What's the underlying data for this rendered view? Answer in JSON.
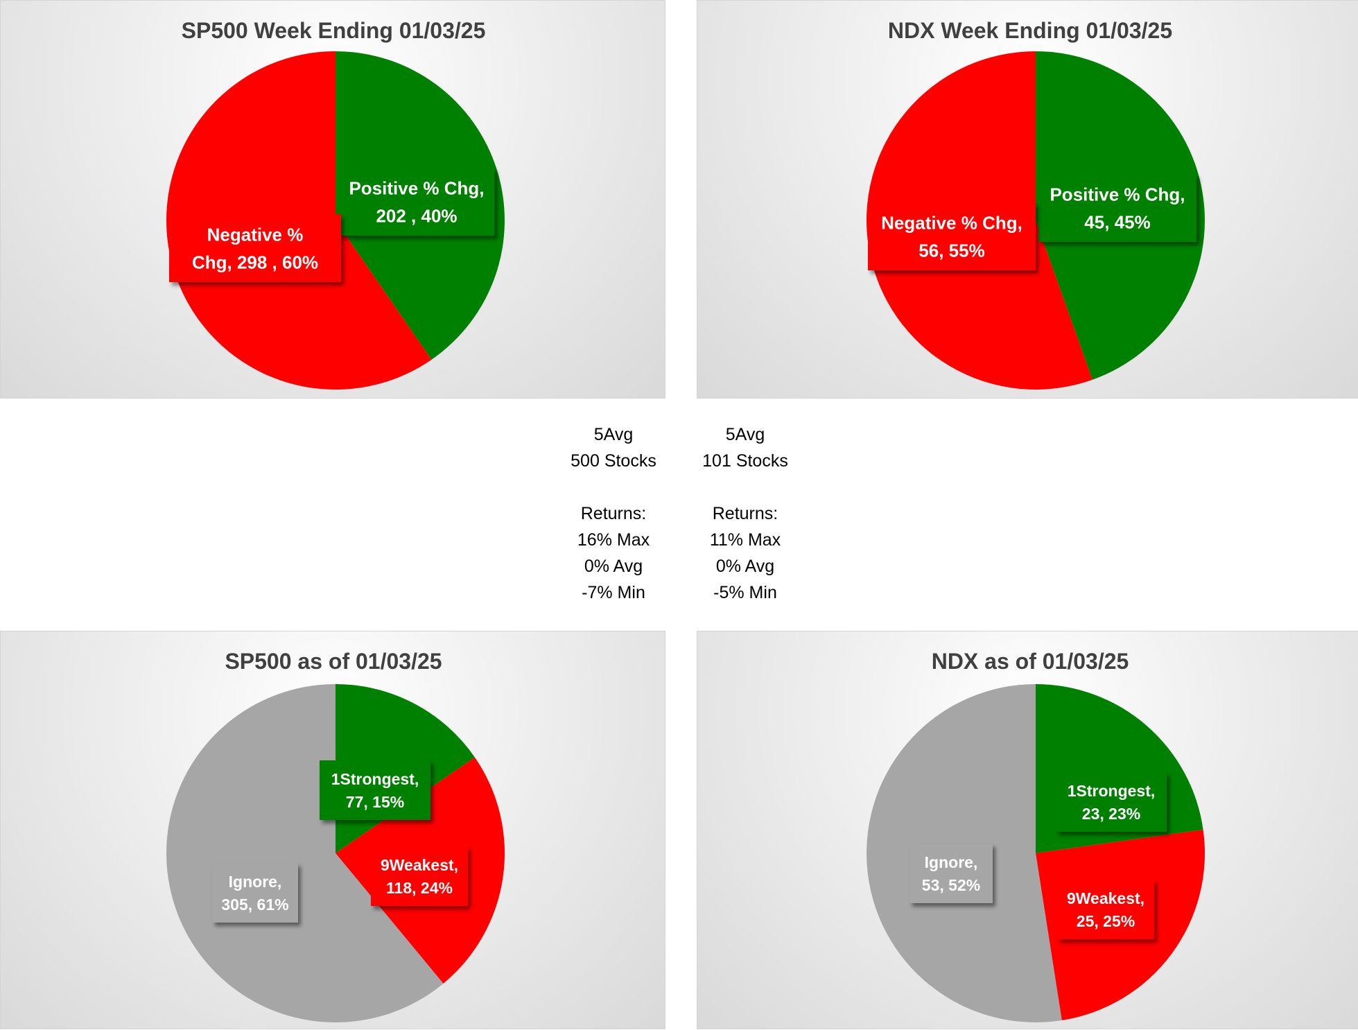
{
  "colors": {
    "positive": "#008000",
    "negative": "#ff0000",
    "ignore": "#a6a6a6",
    "title": "#404040"
  },
  "chart_data": [
    {
      "id": "sp500-week",
      "type": "pie",
      "title": "SP500 Week Ending 01/03/25",
      "slices": [
        {
          "name": "Positive % Chg",
          "value": 202,
          "percent": 40,
          "color": "#008000",
          "label_lines": [
            "Positive % Chg,",
            "202 , 40%"
          ]
        },
        {
          "name": "Negative % Chg",
          "value": 298,
          "percent": 60,
          "color": "#ff0000",
          "label_lines": [
            "Negative %",
            "Chg,  298 , 60%"
          ]
        }
      ]
    },
    {
      "id": "ndx-week",
      "type": "pie",
      "title": "NDX Week Ending 01/03/25",
      "slices": [
        {
          "name": "Positive % Chg",
          "value": 45,
          "percent": 45,
          "color": "#008000",
          "label_lines": [
            "Positive % Chg,",
            "45, 45%"
          ]
        },
        {
          "name": "Negative % Chg",
          "value": 56,
          "percent": 55,
          "color": "#ff0000",
          "label_lines": [
            "Negative % Chg,",
            "56, 55%"
          ]
        }
      ]
    },
    {
      "id": "sp500-asof",
      "type": "pie",
      "title": "SP500 as of 01/03/25",
      "slices": [
        {
          "name": "1Strongest",
          "value": 77,
          "percent": 15,
          "color": "#008000",
          "label_lines": [
            "1Strongest,",
            "77, 15%"
          ]
        },
        {
          "name": "9Weakest",
          "value": 118,
          "percent": 24,
          "color": "#ff0000",
          "label_lines": [
            "9Weakest,",
            "118, 24%"
          ]
        },
        {
          "name": "Ignore",
          "value": 305,
          "percent": 61,
          "color": "#a6a6a6",
          "label_lines": [
            "Ignore,",
            "305, 61%"
          ]
        }
      ]
    },
    {
      "id": "ndx-asof",
      "type": "pie",
      "title": "NDX as of 01/03/25",
      "slices": [
        {
          "name": "1Strongest",
          "value": 23,
          "percent": 23,
          "color": "#008000",
          "label_lines": [
            "1Strongest,",
            "23, 23%"
          ]
        },
        {
          "name": "9Weakest",
          "value": 25,
          "percent": 25,
          "color": "#ff0000",
          "label_lines": [
            "9Weakest,",
            "25, 25%"
          ]
        },
        {
          "name": "Ignore",
          "value": 53,
          "percent": 52,
          "color": "#a6a6a6",
          "label_lines": [
            "Ignore,",
            "53, 52%"
          ]
        }
      ]
    }
  ],
  "stats": {
    "sp500": {
      "avg_label": "5Avg",
      "count_label": "500 Stocks",
      "returns_label": "Returns:",
      "max": "16% Max",
      "avg": "0% Avg",
      "min": "-7% Min"
    },
    "ndx": {
      "avg_label": "5Avg",
      "count_label": "101 Stocks",
      "returns_label": "Returns:",
      "max": "11% Max",
      "avg": "0% Avg",
      "min": "-5% Min"
    }
  }
}
